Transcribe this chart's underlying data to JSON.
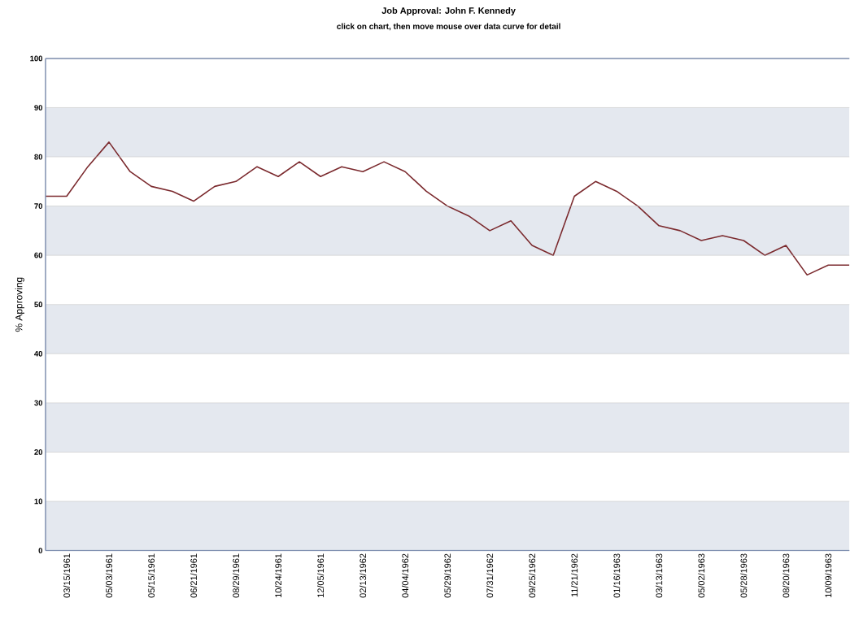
{
  "chart_data": {
    "type": "line",
    "title": "Job Approval: John F. Kennedy",
    "subtitle": "click on chart, then move mouse over data curve for detail",
    "ylabel": "% Approving",
    "categories": [
      null,
      "03/15/1961",
      null,
      "05/03/1961",
      null,
      "05/15/1961",
      null,
      "06/21/1961",
      null,
      "08/29/1961",
      null,
      "10/24/1961",
      null,
      "12/05/1961",
      null,
      "02/13/1962",
      null,
      "04/04/1962",
      null,
      "05/29/1962",
      null,
      "07/31/1962",
      null,
      "09/25/1962",
      null,
      "11/21/1962",
      null,
      "01/16/1963",
      null,
      "03/13/1963",
      null,
      "05/02/1963",
      null,
      "05/28/1963",
      null,
      "08/20/1963",
      null,
      "10/09/1963",
      null
    ],
    "series": [
      {
        "color": "#7b2a2e",
        "values": [
          72,
          72,
          78,
          83,
          77,
          74,
          73,
          71,
          74,
          75,
          78,
          76,
          79,
          76,
          78,
          77,
          79,
          77,
          73,
          70,
          68,
          65,
          67,
          62,
          60,
          72,
          75,
          73,
          70,
          66,
          65,
          63,
          64,
          63,
          60,
          62,
          56,
          58,
          58
        ]
      }
    ],
    "ylim": [
      0,
      100
    ],
    "yticks": [
      0,
      10,
      20,
      30,
      40,
      50,
      60,
      70,
      80,
      90,
      100
    ],
    "grid": "y",
    "marker": "none",
    "line_style": "solid",
    "bands": [
      {
        "axis": "y",
        "from": 0,
        "to": 10,
        "color": "#e4e8ef"
      },
      {
        "axis": "y",
        "from": 20,
        "to": 30,
        "color": "#e4e8ef"
      },
      {
        "axis": "y",
        "from": 40,
        "to": 50,
        "color": "#e4e8ef"
      },
      {
        "axis": "y",
        "from": 60,
        "to": 70,
        "color": "#e4e8ef"
      },
      {
        "axis": "y",
        "from": 80,
        "to": 90,
        "color": "#e4e8ef"
      }
    ]
  }
}
